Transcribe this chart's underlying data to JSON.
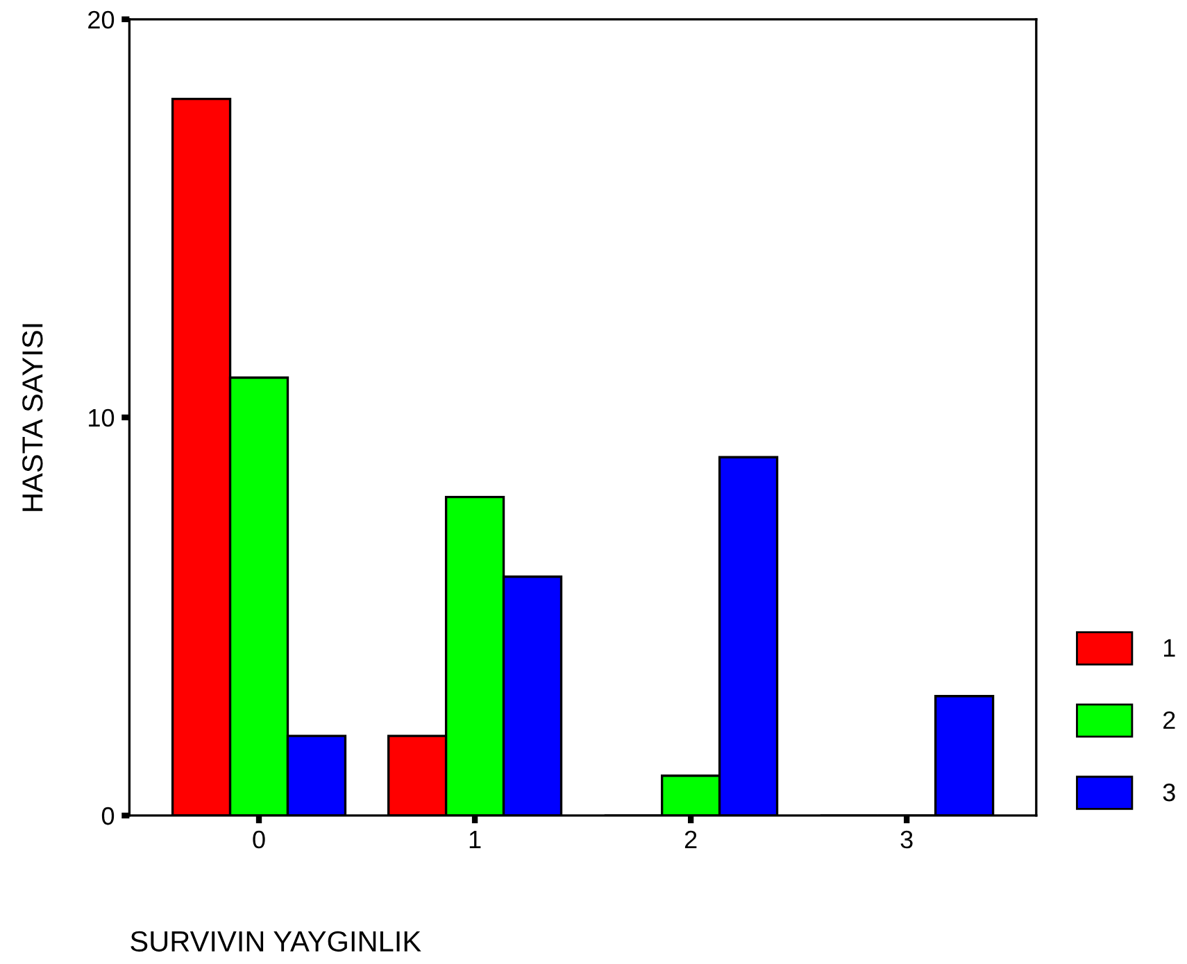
{
  "chart_data": {
    "type": "bar",
    "xlabel": "SURVIVIN YAYGINLIK",
    "ylabel": "HASTA SAYISI",
    "categories": [
      "0",
      "1",
      "2",
      "3"
    ],
    "series": [
      {
        "name": "1",
        "color": "#ff0000",
        "values": [
          18,
          2,
          0,
          0
        ]
      },
      {
        "name": "2",
        "color": "#00ff00",
        "values": [
          11,
          8,
          1,
          0
        ]
      },
      {
        "name": "3",
        "color": "#0000ff",
        "values": [
          2,
          6,
          9,
          3
        ]
      }
    ],
    "ylim": [
      0,
      20
    ],
    "yticks": [
      0,
      10,
      20
    ],
    "grid": false,
    "legend": "bottom right"
  }
}
